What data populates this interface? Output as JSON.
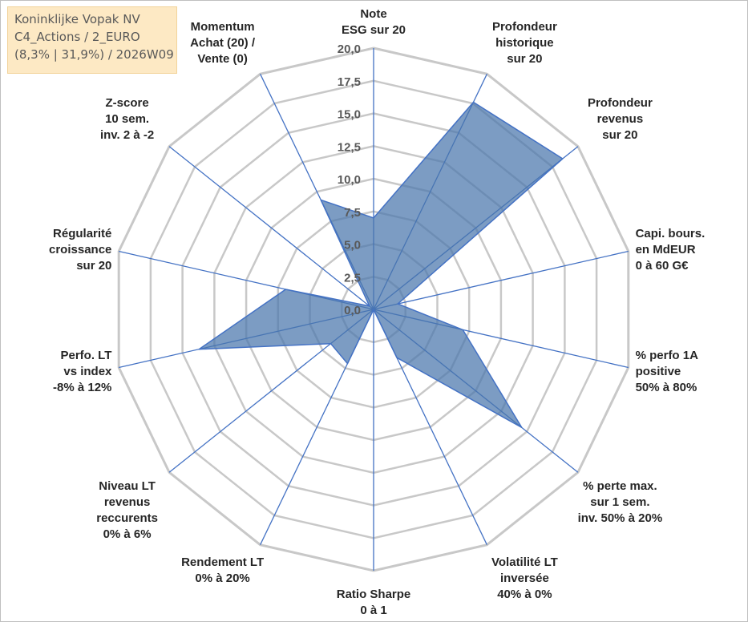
{
  "title_box": {
    "line1": "Koninklijke Vopak NV",
    "line2": "C4_Actions / 2_EURO",
    "line3": "(8,3% | 31,9%) / 2026W09"
  },
  "chart_data": {
    "type": "radar",
    "rlim": [
      0,
      20
    ],
    "rticks": [
      "0,0",
      "2,5",
      "5,0",
      "7,5",
      "10,0",
      "12,5",
      "15,0",
      "17,5",
      "20,0"
    ],
    "axes": [
      [
        "Note",
        "ESG sur 20"
      ],
      [
        "Profondeur",
        "historique",
        "sur 20"
      ],
      [
        "Profondeur",
        "revenus",
        "sur 20"
      ],
      [
        "Capi. bours.",
        "en MdEUR",
        "0 à 60 G€"
      ],
      [
        "% perfo 1A",
        "positive",
        "50% à 80%"
      ],
      [
        "% perte max.",
        "sur 1 sem.",
        "inv. 50% à 20%"
      ],
      [
        "Volatilité LT",
        "inversée",
        "40% à 0%"
      ],
      [
        "Ratio Sharpe",
        "0 à 1"
      ],
      [
        "Rendement LT",
        "0% à 20%"
      ],
      [
        "Niveau LT",
        "revenus",
        "reccurents",
        "0% à 6%"
      ],
      [
        "Perfo. LT",
        "vs index",
        "-8% à 12%"
      ],
      [
        "Régularité",
        "croissance",
        "sur 20"
      ],
      [
        "Z-score",
        "10 sem.",
        "inv. 2 à -2"
      ],
      [
        "Momentum",
        "Achat (20) /",
        "Vente (0)"
      ]
    ],
    "values": [
      7.0,
      17.6,
      18.5,
      1.9,
      7.0,
      14.5,
      4.1,
      0.0,
      4.6,
      4.2,
      13.7,
      6.9,
      0.4,
      9.3
    ],
    "grid": true,
    "legend": "none",
    "colors": {
      "fill": "#4a76ac",
      "stroke": "#4472c4",
      "spoke": "#4472c4",
      "ring": "#c8c8c8",
      "title_bg": "#fde9c4"
    }
  }
}
